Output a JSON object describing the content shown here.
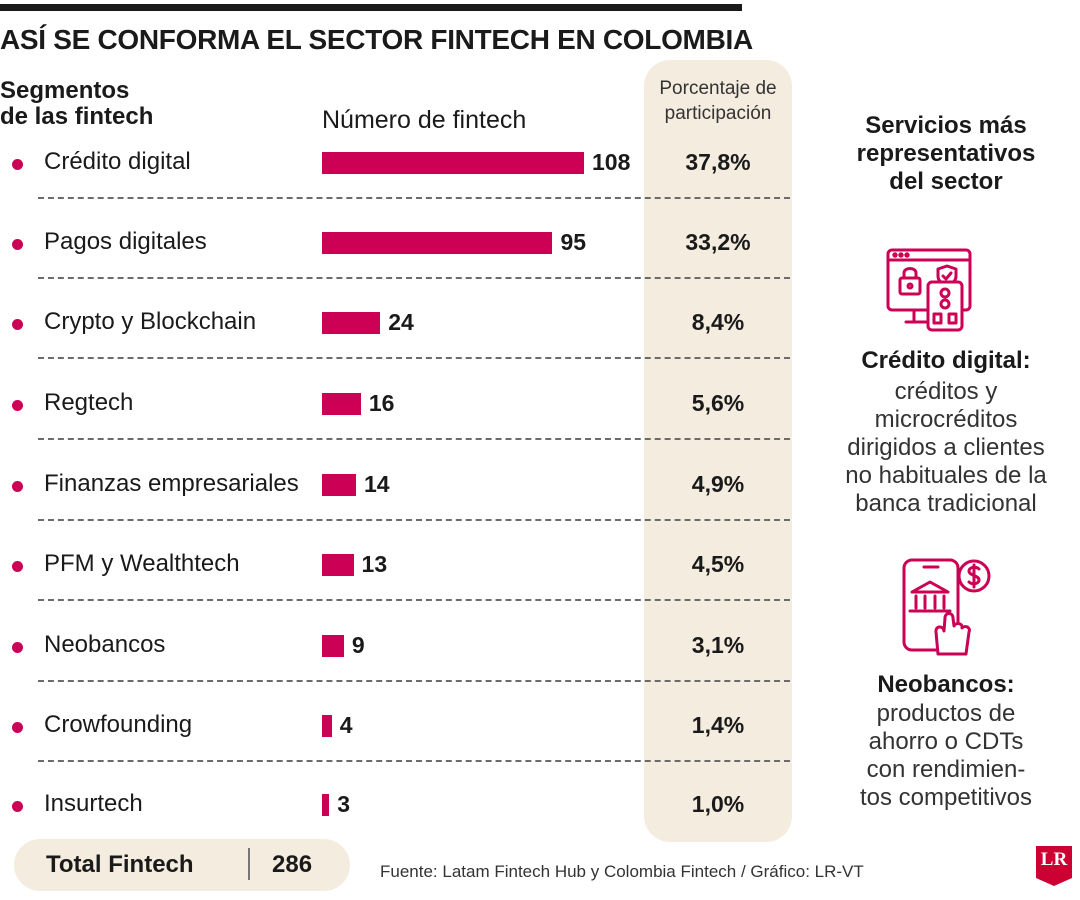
{
  "title": "ASÍ SE CONFORMA EL SECTOR FINTECH EN COLOMBIA",
  "columns": {
    "segments_line1": "Segmentos",
    "segments_line2": "de las fintech",
    "count": "Número de fintech",
    "share_line1": "Porcentaje de",
    "share_line2": "participación"
  },
  "colors": {
    "accent": "#cc0055",
    "band": "#f4ecdf",
    "text": "#1a1a1a"
  },
  "chart_data": {
    "type": "bar",
    "orientation": "horizontal",
    "title": "ASÍ SE CONFORMA EL SECTOR FINTECH EN COLOMBIA",
    "xlabel": "Número de fintech",
    "ylabel": "Segmentos de las fintech",
    "categories": [
      "Crédito digital",
      "Pagos digitales",
      "Crypto y Blockchain",
      "Regtech",
      "Finanzas empresariales",
      "PFM y Wealthtech",
      "Neobancos",
      "Crowfounding",
      "Insurtech"
    ],
    "values": [
      108,
      95,
      24,
      16,
      14,
      13,
      9,
      4,
      3
    ],
    "shares": [
      "37,8%",
      "33,2%",
      "8,4%",
      "5,6%",
      "4,9%",
      "4,5%",
      "3,1%",
      "1,4%",
      "1,0%"
    ],
    "xlim": [
      0,
      108
    ]
  },
  "total": {
    "label": "Total Fintech",
    "value": "286"
  },
  "source": "Fuente: Latam Fintech Hub y Colombia Fintech / Gráfico: LR-VT",
  "side": {
    "title_lines": [
      "Servicios más",
      "representativos",
      "del sector"
    ],
    "services": [
      {
        "icon": "secure-screen-card-icon",
        "name": "Crédito digital:",
        "desc_lines": [
          "créditos y",
          "microcréditos",
          "dirigidos a clientes",
          "no habituales de la",
          "banca tradicional"
        ]
      },
      {
        "icon": "mobile-bank-payment-icon",
        "name": "Neobancos:",
        "desc_lines": [
          "productos de",
          "ahorro o CDTs",
          "con rendimien-",
          "tos competitivos"
        ]
      }
    ]
  },
  "logo": {
    "text": "LR"
  }
}
